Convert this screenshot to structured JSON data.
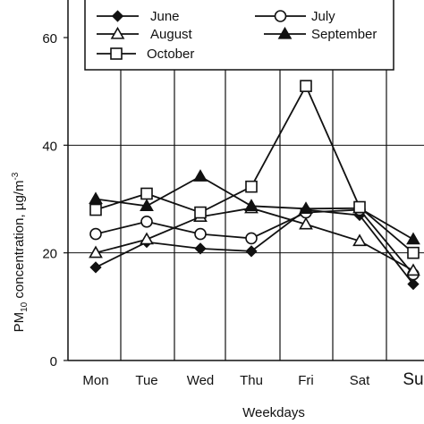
{
  "chart_data": {
    "type": "line",
    "title": "",
    "xlabel": "Weekdays",
    "ylabel_main": "PM",
    "ylabel_sub": "10",
    "ylabel_rest": " concentration, µg/m",
    "ylabel_sup": "-3",
    "categories": [
      "Mon",
      "Tue",
      "Wed",
      "Thu",
      "Fri",
      "Sat",
      "Su"
    ],
    "ylim": [
      0,
      60
    ],
    "yticks": [
      "0",
      "20",
      "40",
      "60"
    ],
    "grid": "vertical",
    "legend_placement": "top",
    "series": [
      {
        "name": "June",
        "marker": "diamond",
        "values": [
          17.3,
          22.0,
          20.8,
          20.3,
          28.0,
          27.0,
          14.2
        ]
      },
      {
        "name": "July",
        "marker": "circle",
        "values": [
          23.5,
          25.8,
          23.5,
          22.7,
          27.5,
          28.0,
          16.0
        ]
      },
      {
        "name": "August",
        "marker": "triangle-open",
        "values": [
          20.0,
          22.5,
          26.7,
          28.3,
          25.3,
          22.2,
          16.7
        ]
      },
      {
        "name": "September",
        "marker": "triangle-filled",
        "values": [
          30.0,
          28.7,
          34.2,
          28.7,
          28.2,
          28.3,
          22.5
        ]
      },
      {
        "name": "October",
        "marker": "square",
        "values": [
          28.0,
          31.0,
          27.5,
          32.3,
          51.0,
          28.5,
          20.0
        ]
      }
    ]
  }
}
